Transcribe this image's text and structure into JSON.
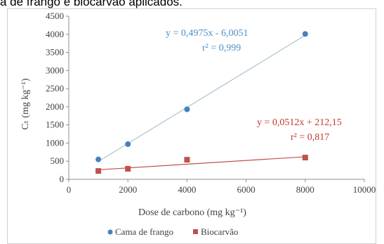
{
  "caption": "a de frango e biocarvão aplicados.",
  "chart_data": {
    "type": "scatter",
    "xlabel": "Dose de carbono (mg kg⁻¹)",
    "ylabel": "Cₜ (mg kg⁻¹)",
    "xlim": [
      0,
      10000
    ],
    "ylim": [
      0,
      4500
    ],
    "xticks": [
      0,
      2000,
      4000,
      6000,
      8000,
      10000
    ],
    "yticks": [
      0,
      500,
      1000,
      1500,
      2000,
      2500,
      3000,
      3500,
      4000,
      4500
    ],
    "grid": false,
    "legend_position": "bottom",
    "series": [
      {
        "name": "Cama de frango",
        "marker": "circle",
        "color": "#4a7fc1",
        "trend_color": "#a9c3cf",
        "x": [
          1000,
          2000,
          4000,
          8000
        ],
        "y": [
          550,
          970,
          1930,
          4010
        ],
        "trendline": {
          "slope": 0.4975,
          "intercept": -6.0051
        },
        "equation": "y = 0,4975x - 6,0051",
        "r2": "r² = 0,999"
      },
      {
        "name": "Biocarvão",
        "marker": "square",
        "color": "#c0504d",
        "trend_color": "#c0504d",
        "x": [
          1000,
          2000,
          4000,
          8000
        ],
        "y": [
          230,
          290,
          540,
          600
        ],
        "trendline": {
          "slope": 0.0512,
          "intercept": 212.15
        },
        "equation": "y = 0,0512x + 212,15",
        "r2": "r² = 0,817"
      }
    ]
  }
}
